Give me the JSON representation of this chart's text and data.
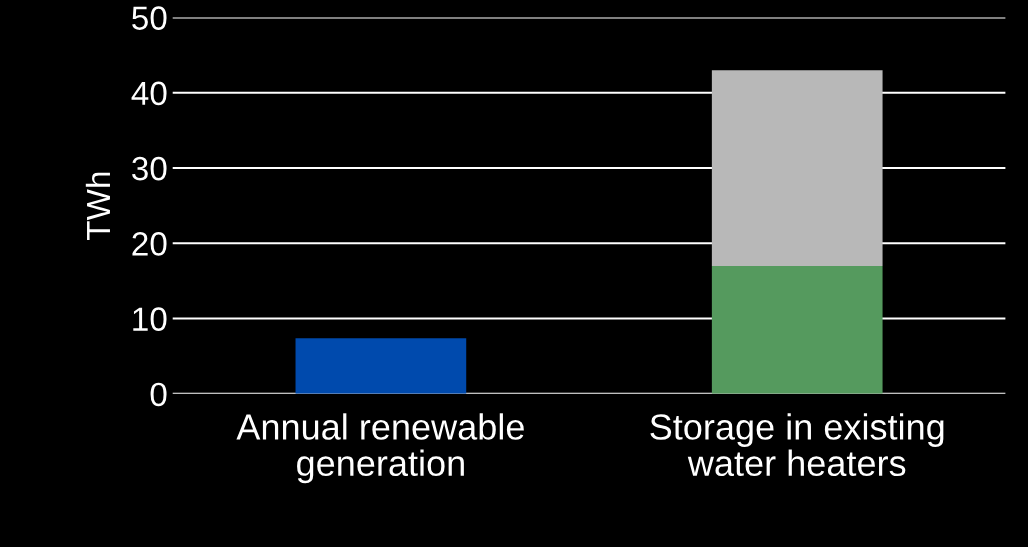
{
  "chart_data": {
    "type": "bar",
    "stacked": true,
    "ylabel": "TWh",
    "categories": [
      "Annual renewable generation",
      "Storage in existing water heaters"
    ],
    "series": [
      {
        "values": [
          7.4,
          17
        ],
        "colors": [
          "#004aad",
          "#559a5e"
        ]
      },
      {
        "values": [
          null,
          26
        ],
        "color": "#b8b8b8"
      }
    ],
    "ylim": [
      0,
      50
    ],
    "yticks": [
      0,
      10,
      20,
      30,
      40,
      50
    ],
    "grid": "y"
  }
}
